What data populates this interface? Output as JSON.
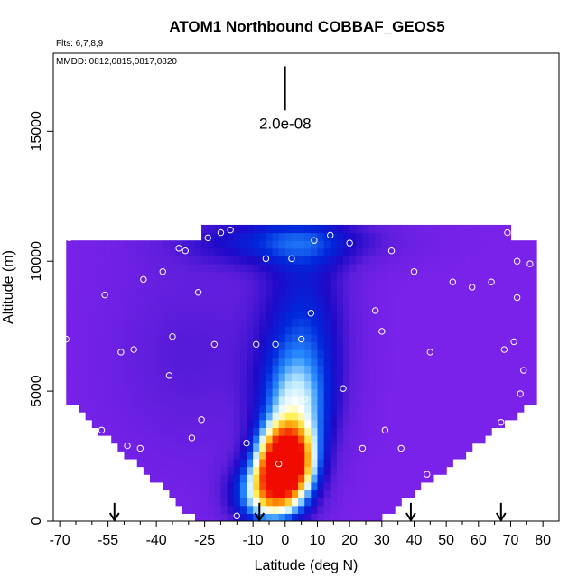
{
  "chart_data": {
    "type": "heatmap",
    "title": "ATOM1 Northbound COBBAF_GEOS5",
    "subtitle_flights": "Flts: 6,7,8,9",
    "subtitle_dates": "MMDD: 0812,0815,0817,0820",
    "xlabel": "Latitude (deg N)",
    "ylabel": "Altitude (m)",
    "xlim": [
      -72,
      85
    ],
    "ylim": [
      0,
      18000
    ],
    "x_ticks": [
      -70,
      -55,
      -40,
      -25,
      -10,
      0,
      10,
      20,
      30,
      40,
      50,
      60,
      70,
      80
    ],
    "x_tick_labels": [
      "-70",
      "-55",
      "-40",
      "-25",
      "-10",
      "0",
      "10",
      "20",
      "30",
      "40",
      "50",
      "60",
      "70",
      "80"
    ],
    "x_minor_ticks": [
      -65,
      -60,
      -50,
      -45,
      -35,
      -30,
      -20,
      -15,
      -5,
      5,
      15,
      25,
      35,
      45,
      55,
      65,
      75
    ],
    "y_ticks": [
      0,
      5000,
      10000,
      15000
    ],
    "y_tick_labels": [
      "0",
      "5000",
      "10000",
      "15000"
    ],
    "scale_bar": {
      "label": "2.0e-08",
      "x": 0,
      "y_bottom": 15800,
      "y_top": 17500
    },
    "colors": {
      "background_field": "#7a22ea",
      "low": "#6a2ae0",
      "mid": "#1010c8",
      "high": "#ff1a00",
      "points": "#ffffff"
    },
    "field_extent": [
      [
        1000,
        10900,
        -68,
        78
      ],
      [
        9000,
        11500,
        -25,
        70
      ]
    ],
    "field_plumes": [
      {
        "name": "surface-core",
        "x": 0,
        "y": 2300,
        "sx": 6,
        "sy": 950,
        "amp": 1.0
      },
      {
        "name": "lower-shoulder",
        "x": -5,
        "y": 1000,
        "sx": 8,
        "sy": 900,
        "amp": 0.62
      },
      {
        "name": "mid-column",
        "x": 3,
        "y": 4200,
        "sx": 8,
        "sy": 1600,
        "amp": 0.42
      },
      {
        "name": "upper-column",
        "x": 6,
        "y": 7500,
        "sx": 10,
        "sy": 2600,
        "amp": 0.3
      },
      {
        "name": "top-band",
        "x": 0,
        "y": 10800,
        "sx": 22,
        "sy": 700,
        "amp": 0.28
      },
      {
        "name": "south-haze",
        "x": -30,
        "y": 6500,
        "sx": 18,
        "sy": 3000,
        "amp": 0.12
      }
    ],
    "sample_points": [
      [
        -67,
        10900
      ],
      [
        -68,
        7000
      ],
      [
        -68,
        3200
      ],
      [
        -56,
        8700
      ],
      [
        -57,
        3500
      ],
      [
        -55,
        200
      ],
      [
        -51,
        6500
      ],
      [
        -49,
        2900
      ],
      [
        -45,
        2800
      ],
      [
        -44,
        9300
      ],
      [
        -47,
        6600
      ],
      [
        -38,
        9600
      ],
      [
        -36,
        5600
      ],
      [
        -35,
        7100
      ],
      [
        -34,
        200
      ],
      [
        -33,
        10500
      ],
      [
        -31,
        10400
      ],
      [
        -29,
        3200
      ],
      [
        -27,
        8800
      ],
      [
        -26,
        3900
      ],
      [
        -24,
        10900
      ],
      [
        -22,
        6800
      ],
      [
        -20,
        11100
      ],
      [
        -17,
        11200
      ],
      [
        -15,
        200
      ],
      [
        -12,
        3000
      ],
      [
        -9,
        6800
      ],
      [
        -6,
        10100
      ],
      [
        -3,
        6800
      ],
      [
        -2,
        2200
      ],
      [
        2,
        10100
      ],
      [
        5,
        7000
      ],
      [
        6,
        4700
      ],
      [
        8,
        8000
      ],
      [
        9,
        10800
      ],
      [
        14,
        11000
      ],
      [
        18,
        5100
      ],
      [
        20,
        10700
      ],
      [
        24,
        2800
      ],
      [
        28,
        8100
      ],
      [
        30,
        7300
      ],
      [
        31,
        3500
      ],
      [
        33,
        10400
      ],
      [
        36,
        2800
      ],
      [
        40,
        9600
      ],
      [
        44,
        1800
      ],
      [
        45,
        6500
      ],
      [
        52,
        9200
      ],
      [
        58,
        9000
      ],
      [
        62,
        200
      ],
      [
        64,
        9200
      ],
      [
        67,
        3800
      ],
      [
        67,
        2300
      ],
      [
        68,
        6600
      ],
      [
        69,
        11100
      ],
      [
        71,
        6900
      ],
      [
        72,
        8600
      ],
      [
        72,
        10000
      ],
      [
        73,
        4900
      ],
      [
        74,
        5800
      ],
      [
        74,
        2100
      ],
      [
        76,
        9900
      ],
      [
        73,
        200
      ],
      [
        80,
        6900
      ],
      [
        42,
        200
      ],
      [
        -39,
        200
      ],
      [
        -40,
        200
      ]
    ],
    "arrow_markers_lat": [
      -53,
      -8,
      39,
      67
    ]
  }
}
